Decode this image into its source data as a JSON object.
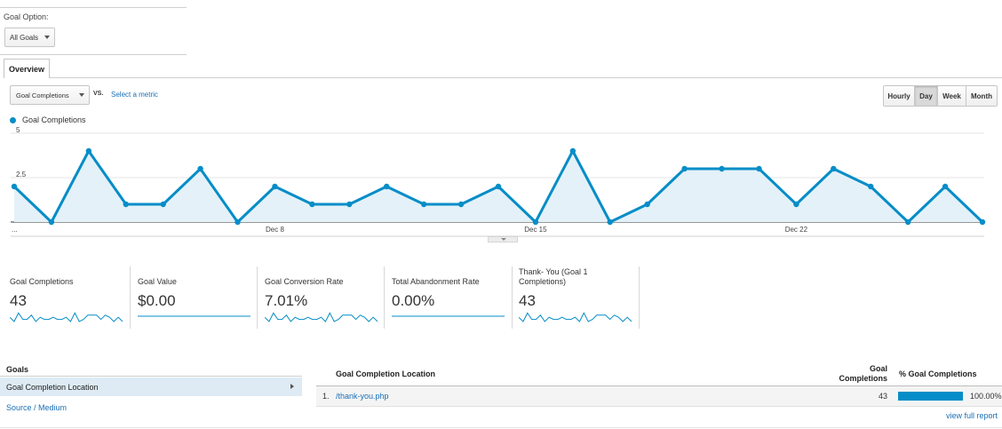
{
  "goal_option": {
    "label": "Goal Option:",
    "selected": "All Goals"
  },
  "tabs": [
    {
      "label": "Overview"
    }
  ],
  "controls": {
    "metric_selected": "Goal Completions",
    "vs_label": "VS.",
    "select_metric_link": "Select a metric",
    "granularity": [
      "Hourly",
      "Day",
      "Week",
      "Month"
    ],
    "active_granularity": "Day"
  },
  "chart_data": {
    "type": "line",
    "legend": "Goal Completions",
    "y_ticks": [
      "5",
      "2.5"
    ],
    "ylim": [
      0,
      5
    ],
    "x_labels": [
      "...",
      "Dec 8",
      "Dec 15",
      "Dec 22"
    ],
    "series": [
      {
        "name": "Goal Completions",
        "color": "#058dc7",
        "values": [
          2,
          0,
          4,
          1,
          1,
          3,
          0,
          2,
          1,
          1,
          2,
          1,
          1,
          2,
          0,
          4,
          0,
          1,
          3,
          3,
          3,
          1,
          3,
          2,
          0,
          2,
          0
        ]
      }
    ]
  },
  "metrics": [
    {
      "label": "Goal Completions",
      "value": "43",
      "spark": true
    },
    {
      "label": "Goal Value",
      "value": "$0.00",
      "spark": false
    },
    {
      "label": "Goal Conversion Rate",
      "value": "7.01%",
      "spark": true
    },
    {
      "label": "Total Abandonment Rate",
      "value": "0.00%",
      "spark": false
    },
    {
      "label": "Thank- You (Goal 1 Completions)",
      "value": "43",
      "spark": true
    }
  ],
  "goals_sidebar": {
    "header": "Goals",
    "items": [
      {
        "label": "Goal Completion Location",
        "selected": true
      },
      {
        "label": "Source / Medium",
        "selected": false
      }
    ]
  },
  "goals_table": {
    "col_location": "Goal Completion Location",
    "col_completions": "Goal Completions",
    "col_percent": "% Goal Completions",
    "rows": [
      {
        "index": "1.",
        "location": "/thank-you.php",
        "completions": "43",
        "percent": "100.00%",
        "fraction": 1.0
      }
    ],
    "view_full_report": "view full report"
  },
  "colors": {
    "accent": "#058dc7",
    "link": "#1a6fb5"
  }
}
